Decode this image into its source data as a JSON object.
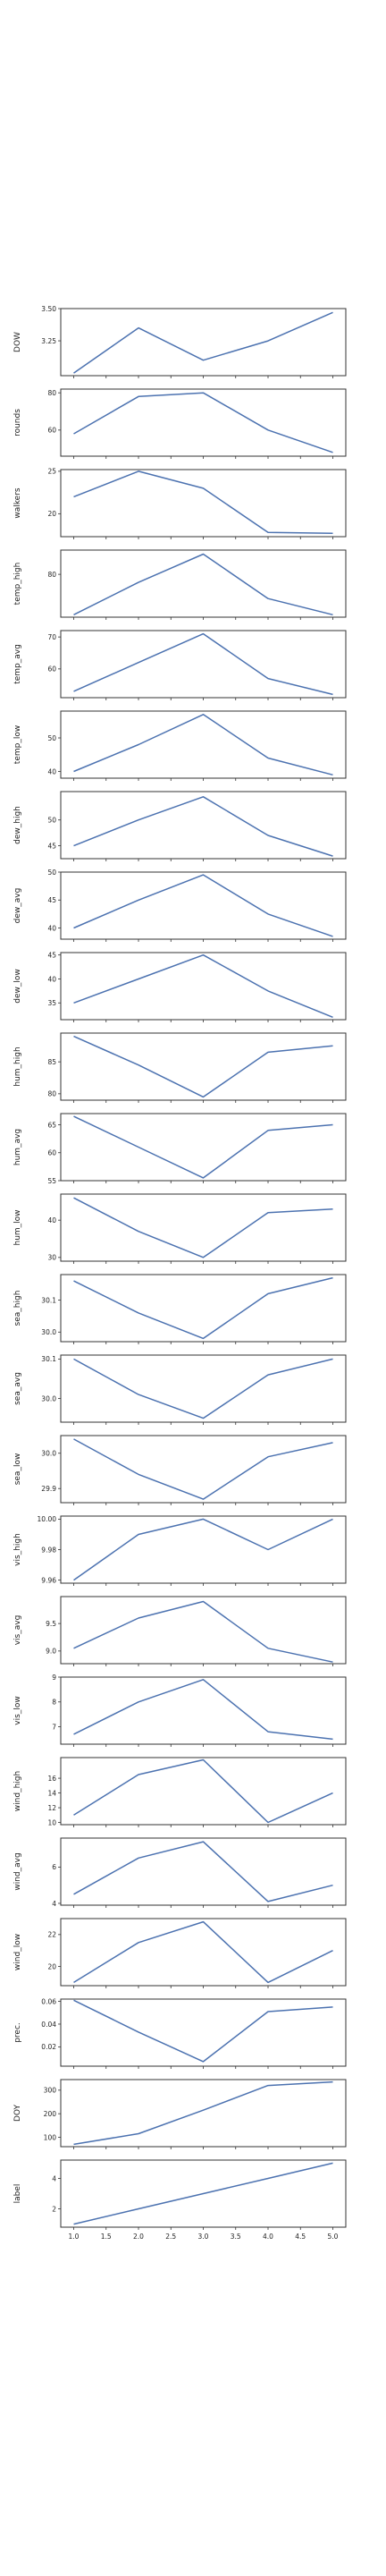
{
  "figure": {
    "line_color": "#4c72b0",
    "axis_color": "#333333",
    "background": "#ffffff"
  },
  "chart_data": [
    {
      "type": "line",
      "ylabel": "DOW",
      "x": [
        1,
        2,
        3,
        4,
        5
      ],
      "y": [
        3.0,
        3.35,
        3.1,
        3.25,
        3.47
      ],
      "xlim": [
        0.8,
        5.2
      ],
      "ylim": [
        2.98,
        3.5
      ],
      "yticks": [
        "3.50",
        "3.25"
      ],
      "show_xticks": false
    },
    {
      "type": "line",
      "ylabel": "rounds",
      "x": [
        1,
        2,
        3,
        4,
        5
      ],
      "y": [
        58,
        78,
        80,
        60,
        48
      ],
      "xlim": [
        0.8,
        5.2
      ],
      "ylim": [
        46,
        82
      ],
      "yticks": [
        "80",
        "60"
      ],
      "show_xticks": false
    },
    {
      "type": "line",
      "ylabel": "walkers",
      "x": [
        1,
        2,
        3,
        4,
        5
      ],
      "y": [
        22,
        25,
        23,
        17.8,
        17.7
      ],
      "xlim": [
        0.8,
        5.2
      ],
      "ylim": [
        17.3,
        25.2
      ],
      "yticks": [
        "25",
        "20"
      ],
      "show_xticks": false
    },
    {
      "type": "line",
      "ylabel": "temp_high",
      "x": [
        1,
        2,
        3,
        4,
        5
      ],
      "y": [
        75,
        79,
        82.5,
        77,
        75
      ],
      "xlim": [
        0.8,
        5.2
      ],
      "ylim": [
        74.7,
        83
      ],
      "yticks": [
        "80"
      ],
      "show_xticks": false
    },
    {
      "type": "line",
      "ylabel": "temp_avg",
      "x": [
        1,
        2,
        3,
        4,
        5
      ],
      "y": [
        53,
        62,
        71,
        57,
        52
      ],
      "xlim": [
        0.8,
        5.2
      ],
      "ylim": [
        51,
        72
      ],
      "yticks": [
        "70",
        "60"
      ],
      "show_xticks": false
    },
    {
      "type": "line",
      "ylabel": "temp_low",
      "x": [
        1,
        2,
        3,
        4,
        5
      ],
      "y": [
        40,
        48,
        57,
        44,
        39
      ],
      "xlim": [
        0.8,
        5.2
      ],
      "ylim": [
        38,
        58
      ],
      "yticks": [
        "50",
        "40"
      ],
      "show_xticks": false
    },
    {
      "type": "line",
      "ylabel": "dew_high",
      "x": [
        1,
        2,
        3,
        4,
        5
      ],
      "y": [
        45,
        50,
        54.5,
        47,
        43
      ],
      "xlim": [
        0.8,
        5.2
      ],
      "ylim": [
        42.5,
        55.5
      ],
      "yticks": [
        "50",
        "45"
      ],
      "show_xticks": false
    },
    {
      "type": "line",
      "ylabel": "dew_avg",
      "x": [
        1,
        2,
        3,
        4,
        5
      ],
      "y": [
        40,
        45,
        49.5,
        42.5,
        38.5
      ],
      "xlim": [
        0.8,
        5.2
      ],
      "ylim": [
        38,
        50
      ],
      "yticks": [
        "50",
        "45",
        "40"
      ],
      "show_xticks": false
    },
    {
      "type": "line",
      "ylabel": "dew_low",
      "x": [
        1,
        2,
        3,
        4,
        5
      ],
      "y": [
        35,
        40,
        45,
        37.5,
        32
      ],
      "xlim": [
        0.8,
        5.2
      ],
      "ylim": [
        31.5,
        45.5
      ],
      "yticks": [
        "45",
        "40",
        "35"
      ],
      "show_xticks": false
    },
    {
      "type": "line",
      "ylabel": "hum_high",
      "x": [
        1,
        2,
        3,
        4,
        5
      ],
      "y": [
        89,
        84.5,
        79.5,
        86.5,
        87.5
      ],
      "xlim": [
        0.8,
        5.2
      ],
      "ylim": [
        79,
        89.5
      ],
      "yticks": [
        "85",
        "80"
      ],
      "show_xticks": false
    },
    {
      "type": "line",
      "ylabel": "hum_avg",
      "x": [
        1,
        2,
        3,
        4,
        5
      ],
      "y": [
        66.5,
        61,
        55.5,
        64,
        65
      ],
      "xlim": [
        0.8,
        5.2
      ],
      "ylim": [
        55,
        67
      ],
      "yticks": [
        "65",
        "60",
        "55"
      ],
      "show_xticks": false
    },
    {
      "type": "line",
      "ylabel": "hum_low",
      "x": [
        1,
        2,
        3,
        4,
        5
      ],
      "y": [
        46,
        37,
        30,
        42,
        43
      ],
      "xlim": [
        0.8,
        5.2
      ],
      "ylim": [
        29,
        47
      ],
      "yticks": [
        "40",
        "30"
      ],
      "show_xticks": false
    },
    {
      "type": "line",
      "ylabel": "sea_high",
      "x": [
        1,
        2,
        3,
        4,
        5
      ],
      "y": [
        30.16,
        30.06,
        29.98,
        30.12,
        30.17
      ],
      "xlim": [
        0.8,
        5.2
      ],
      "ylim": [
        29.97,
        30.18
      ],
      "yticks": [
        "30.1",
        "30.0"
      ],
      "show_xticks": false
    },
    {
      "type": "line",
      "ylabel": "sea_avg",
      "x": [
        1,
        2,
        3,
        4,
        5
      ],
      "y": [
        30.1,
        30.01,
        29.95,
        30.06,
        30.1
      ],
      "xlim": [
        0.8,
        5.2
      ],
      "ylim": [
        29.94,
        30.11
      ],
      "yticks": [
        "30.1",
        "30.0"
      ],
      "show_xticks": false
    },
    {
      "type": "line",
      "ylabel": "sea_low",
      "x": [
        1,
        2,
        3,
        4,
        5
      ],
      "y": [
        30.04,
        29.94,
        29.87,
        29.99,
        30.03
      ],
      "xlim": [
        0.8,
        5.2
      ],
      "ylim": [
        29.86,
        30.05
      ],
      "yticks": [
        "30.0",
        "29.9"
      ],
      "show_xticks": false
    },
    {
      "type": "line",
      "ylabel": "vis_high",
      "x": [
        1,
        2,
        3,
        4,
        5
      ],
      "y": [
        9.96,
        9.99,
        10.0,
        9.98,
        10.0
      ],
      "xlim": [
        0.8,
        5.2
      ],
      "ylim": [
        9.958,
        10.002
      ],
      "yticks": [
        "10.00",
        "9.98",
        "9.96"
      ],
      "show_xticks": false
    },
    {
      "type": "line",
      "ylabel": "vis_avg",
      "x": [
        1,
        2,
        3,
        4,
        5
      ],
      "y": [
        9.05,
        9.6,
        9.9,
        9.05,
        8.8
      ],
      "xlim": [
        0.8,
        5.2
      ],
      "ylim": [
        8.77,
        9.99
      ],
      "yticks": [
        "9.5",
        "9.0"
      ],
      "show_xticks": false
    },
    {
      "type": "line",
      "ylabel": "vis_low",
      "x": [
        1,
        2,
        3,
        4,
        5
      ],
      "y": [
        6.7,
        8.0,
        8.9,
        6.8,
        6.5
      ],
      "xlim": [
        0.8,
        5.2
      ],
      "ylim": [
        6.3,
        9.0
      ],
      "yticks": [
        "9",
        "8",
        "7"
      ],
      "show_xticks": false
    },
    {
      "type": "line",
      "ylabel": "wind_high",
      "x": [
        1,
        2,
        3,
        4,
        5
      ],
      "y": [
        11,
        16.5,
        18.5,
        10,
        14
      ],
      "xlim": [
        0.8,
        5.2
      ],
      "ylim": [
        9.7,
        18.8
      ],
      "yticks": [
        "16",
        "14",
        "12",
        "10"
      ],
      "show_xticks": false
    },
    {
      "type": "line",
      "ylabel": "wind_avg",
      "x": [
        1,
        2,
        3,
        4,
        5
      ],
      "y": [
        4.5,
        6.5,
        7.4,
        4.1,
        5.0
      ],
      "xlim": [
        0.8,
        5.2
      ],
      "ylim": [
        3.9,
        7.6
      ],
      "yticks": [
        "6",
        "4"
      ],
      "show_xticks": false
    },
    {
      "type": "line",
      "ylabel": "wind_low",
      "x": [
        1,
        2,
        3,
        4,
        5
      ],
      "y": [
        19,
        21.5,
        22.8,
        19,
        21
      ],
      "xlim": [
        0.8,
        5.2
      ],
      "ylim": [
        18.8,
        23
      ],
      "yticks": [
        "22",
        "20"
      ],
      "show_xticks": false
    },
    {
      "type": "line",
      "ylabel": "prec.",
      "x": [
        1,
        2,
        3,
        4,
        5
      ],
      "y": [
        0.061,
        0.033,
        0.007,
        0.051,
        0.055
      ],
      "xlim": [
        0.8,
        5.2
      ],
      "ylim": [
        0.003,
        0.062
      ],
      "yticks": [
        "0.06",
        "0.04",
        "0.02"
      ],
      "show_xticks": false
    },
    {
      "type": "line",
      "ylabel": "DOY",
      "x": [
        1,
        2,
        3,
        4,
        5
      ],
      "y": [
        70,
        115,
        215,
        320,
        335
      ],
      "xlim": [
        0.8,
        5.2
      ],
      "ylim": [
        60,
        345
      ],
      "yticks": [
        "300",
        "200",
        "100"
      ],
      "show_xticks": false
    },
    {
      "type": "line",
      "ylabel": "label",
      "x": [
        1,
        2,
        3,
        4,
        5
      ],
      "y": [
        1,
        2,
        3,
        4,
        5
      ],
      "xlim": [
        0.8,
        5.2
      ],
      "ylim": [
        0.8,
        5.2
      ],
      "yticks": [
        "4",
        "2"
      ],
      "show_xticks": true,
      "xticks": [
        "1.0",
        "1.5",
        "2.0",
        "2.5",
        "3.0",
        "3.5",
        "4.0",
        "4.5",
        "5.0"
      ]
    }
  ]
}
